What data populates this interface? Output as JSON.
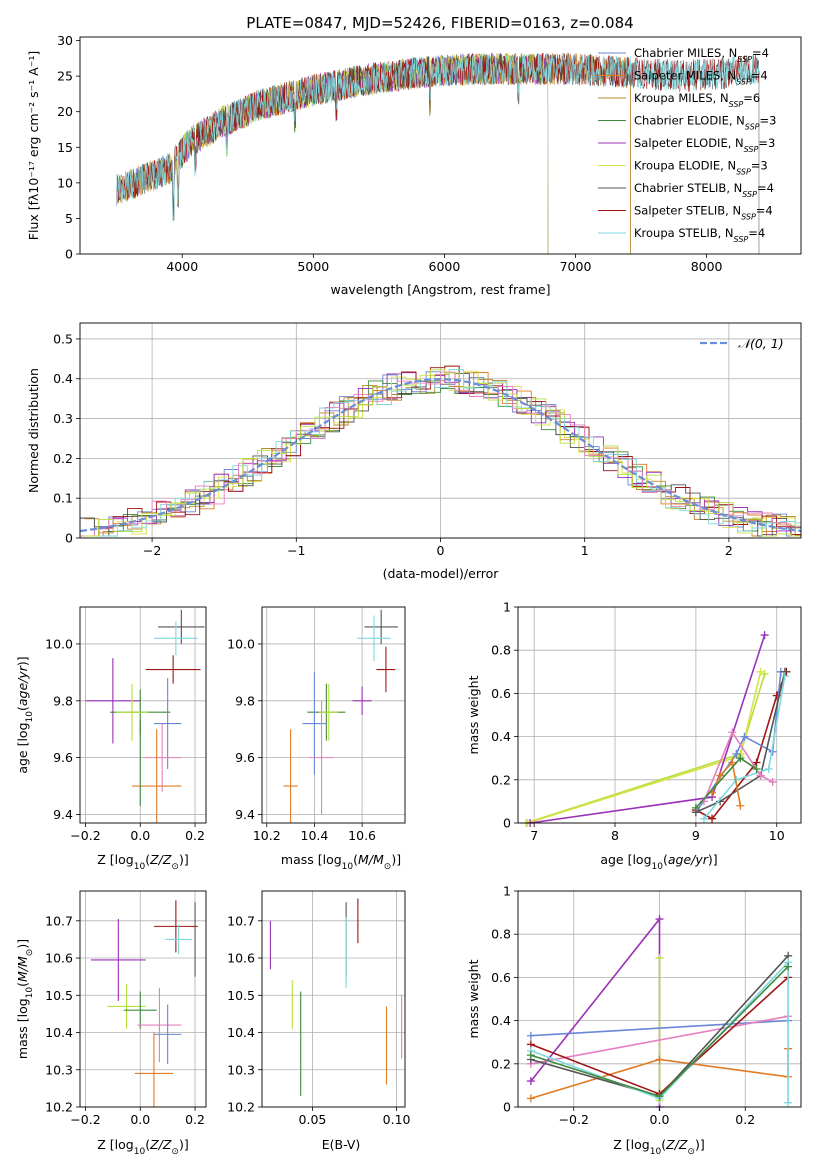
{
  "figure_title": "PLATE=0847, MJD=52426, FIBERID=0163, z=0.084",
  "colors": {
    "Chabrier MILES": "#6a86d6",
    "Salpeter MILES": "#e07b26",
    "Kroupa MILES": "#b8892a",
    "Chabrier ELODIE": "#3e8a3e",
    "Salpeter ELODIE": "#9b30b8",
    "Kroupa ELODIE": "#d9e04a",
    "Chabrier STELIB": "#555555",
    "Salpeter STELIB": "#a01515",
    "Kroupa STELIB": "#7ed8de",
    "pink": "#e67fbf",
    "lime": "#b6e03c",
    "gauss": "#6a8fd8"
  },
  "chart_data": [
    {
      "id": "spectrum",
      "type": "line",
      "title": "PLATE=0847, MJD=52426, FIBERID=0163, z=0.084",
      "xlabel": "wavelength [Angstrom, rest frame]",
      "ylabel": "Flux [fλ10⁻¹⁷ erg cm⁻² s⁻¹ A⁻¹]",
      "xlim": [
        3220,
        8720
      ],
      "ylim": [
        0,
        30.5
      ],
      "xticks": [
        4000,
        5000,
        6000,
        7000,
        8000
      ],
      "yticks": [
        0,
        5,
        10,
        15,
        20,
        25,
        30
      ],
      "legend_placement": "upper-right",
      "continuum_x": [
        3500,
        3700,
        3900,
        4050,
        4300,
        4600,
        5000,
        5400,
        5800,
        6200,
        6600,
        7000,
        7400,
        7800,
        8200,
        8400
      ],
      "continuum_y": [
        9,
        10.5,
        12,
        15.5,
        18.5,
        21,
        23,
        24.5,
        25.5,
        26,
        26,
        26,
        25.5,
        25,
        25.5,
        26
      ],
      "series": [
        {
          "name": "Chabrier MILES, N_SSP=4",
          "sub": "SSP",
          "pre": "Chabrier MILES, N",
          "post": "=4",
          "color_key": "Chabrier MILES",
          "range": [
            3500,
            7420
          ]
        },
        {
          "name": "Salpeter MILES, N_SSP=4",
          "sub": "SSP",
          "pre": "Salpeter MILES, N",
          "post": "=4",
          "color_key": "Salpeter MILES",
          "range": [
            3500,
            7420
          ]
        },
        {
          "name": "Kroupa MILES, N_SSP=6",
          "sub": "SSP",
          "pre": "Kroupa MILES, N",
          "post": "=6",
          "color_key": "Kroupa MILES",
          "range": [
            3500,
            7420
          ]
        },
        {
          "name": "Chabrier ELODIE, N_SSP=3",
          "sub": "SSP",
          "pre": "Chabrier ELODIE, N",
          "post": "=3",
          "color_key": "Chabrier ELODIE",
          "range": [
            3900,
            6790
          ]
        },
        {
          "name": "Salpeter ELODIE, N_SSP=3",
          "sub": "SSP",
          "pre": "Salpeter ELODIE, N",
          "post": "=3",
          "color_key": "Salpeter ELODIE",
          "range": [
            3900,
            6790
          ]
        },
        {
          "name": "Kroupa ELODIE, N_SSP=3",
          "sub": "SSP",
          "pre": "Kroupa ELODIE, N",
          "post": "=3",
          "color_key": "Kroupa ELODIE",
          "range": [
            3900,
            6790
          ]
        },
        {
          "name": "Chabrier STELIB, N_SSP=4",
          "sub": "SSP",
          "pre": "Chabrier STELIB, N",
          "post": "=4",
          "color_key": "Chabrier STELIB",
          "range": [
            3500,
            8400
          ]
        },
        {
          "name": "Salpeter STELIB, N_SSP=4",
          "sub": "SSP",
          "pre": "Salpeter STELIB, N",
          "post": "=4",
          "color_key": "Salpeter STELIB",
          "range": [
            3500,
            8400
          ]
        },
        {
          "name": "Kroupa STELIB, N_SSP=4",
          "sub": "SSP",
          "pre": "Kroupa STELIB, N",
          "post": "=4",
          "color_key": "Kroupa STELIB",
          "range": [
            3500,
            8400
          ]
        }
      ]
    },
    {
      "id": "residuals",
      "type": "line",
      "xlabel": "(data-model)/error",
      "ylabel": "Normed distribution",
      "xlim": [
        -2.5,
        2.5
      ],
      "ylim": [
        0,
        0.54
      ],
      "xticks": [
        -2,
        -1,
        0,
        1,
        2
      ],
      "xticklabels": [
        "−2",
        "−1",
        "0",
        "1",
        "2"
      ],
      "yticks": [
        0.0,
        0.1,
        0.2,
        0.3,
        0.4,
        0.5
      ],
      "grid": true,
      "legend_placement": "upper-right",
      "gauss_label": "𝒩(0, 1)",
      "bin_width": 0.1,
      "histogram_colors": [
        "Chabrier MILES",
        "Salpeter MILES",
        "Kroupa MILES",
        "Chabrier ELODIE",
        "Salpeter ELODIE",
        "Kroupa ELODIE",
        "Chabrier STELIB",
        "Salpeter STELIB",
        "Kroupa STELIB",
        "pink",
        "lime"
      ]
    },
    {
      "id": "age_vs_Z",
      "type": "scatter",
      "xlabel": "Z [log10(Z/Z⊙)]",
      "ylabel": "age [log10(age/yr)]",
      "xlim": [
        -0.22,
        0.24
      ],
      "ylim": [
        9.37,
        10.13
      ],
      "xticks": [
        -0.2,
        0.0,
        0.2
      ],
      "xticklabels": [
        "−0.2",
        "0.0",
        "0.2"
      ],
      "yticks": [
        9.4,
        9.6,
        9.8,
        10.0
      ],
      "yticklabels": [
        "9.4",
        "9.6",
        "9.8",
        "10.0"
      ],
      "grid": true,
      "points": [
        {
          "c": "Chabrier STELIB",
          "x": 0.15,
          "xerr": 0.085,
          "y": 10.06,
          "yerr": 0.06
        },
        {
          "c": "Kroupa STELIB",
          "x": 0.13,
          "xerr": 0.08,
          "y": 10.02,
          "yerr": 0.06
        },
        {
          "c": "Salpeter STELIB",
          "x": 0.12,
          "xerr": 0.1,
          "y": 9.91,
          "yerr": 0.05
        },
        {
          "c": "Salpeter ELODIE",
          "x": -0.1,
          "xerr": 0.1,
          "y": 9.8,
          "yerr": 0.15
        },
        {
          "c": "Chabrier ELODIE",
          "x": 0.0,
          "xerr": 0.11,
          "y": 9.76,
          "yerr": 0.08
        },
        {
          "c": "lime",
          "x": -0.03,
          "xerr": 0.06,
          "y": 9.76,
          "yerr": 0.1
        },
        {
          "c": "Chabrier MILES",
          "x": 0.1,
          "xerr": 0.05,
          "y": 9.72,
          "yerr": 0.16
        },
        {
          "c": "pink",
          "x": 0.08,
          "xerr": 0.07,
          "y": 9.6,
          "yerr": 0.12
        },
        {
          "c": "Salpeter MILES",
          "x": 0.06,
          "xerr": 0.09,
          "y": 9.5,
          "yerr": 0.2
        },
        {
          "c": "Chabrier ELODIE",
          "x": 0.0,
          "xerr": 0.0,
          "y": 9.58,
          "yerr": 0.15
        }
      ]
    },
    {
      "id": "age_vs_mass",
      "type": "scatter",
      "xlabel": "mass [log10(M/M⊙)]",
      "xlim": [
        10.18,
        10.78
      ],
      "ylim": [
        9.37,
        10.13
      ],
      "xticks": [
        10.2,
        10.4,
        10.6
      ],
      "xticklabels": [
        "10.2",
        "10.4",
        "10.6"
      ],
      "yticks": [
        9.4,
        9.6,
        9.8,
        10.0
      ],
      "yticklabels": [
        "9.4",
        "9.6",
        "9.8",
        "10.0"
      ],
      "grid": true,
      "points": [
        {
          "c": "Chabrier STELIB",
          "x": 10.68,
          "xerr": 0.07,
          "y": 10.06,
          "yerr": 0.06
        },
        {
          "c": "Kroupa STELIB",
          "x": 10.65,
          "xerr": 0.07,
          "y": 10.02,
          "yerr": 0.08
        },
        {
          "c": "Salpeter STELIB",
          "x": 10.7,
          "xerr": 0.04,
          "y": 9.91,
          "yerr": 0.08
        },
        {
          "c": "Salpeter ELODIE",
          "x": 10.6,
          "xerr": 0.04,
          "y": 9.8,
          "yerr": 0.05
        },
        {
          "c": "Chabrier ELODIE",
          "x": 10.45,
          "xerr": 0.08,
          "y": 9.76,
          "yerr": 0.1
        },
        {
          "c": "lime",
          "x": 10.46,
          "xerr": 0.04,
          "y": 9.76,
          "yerr": 0.1
        },
        {
          "c": "Chabrier MILES",
          "x": 10.4,
          "xerr": 0.05,
          "y": 9.72,
          "yerr": 0.18
        },
        {
          "c": "pink",
          "x": 10.43,
          "xerr": 0.05,
          "y": 9.6,
          "yerr": 0.2
        },
        {
          "c": "Salpeter MILES",
          "x": 10.3,
          "xerr": 0.03,
          "y": 9.5,
          "yerr": 0.2
        }
      ]
    },
    {
      "id": "weight_vs_age",
      "type": "line",
      "xlabel": "age [log10(age/yr)]",
      "ylabel": "mass weight",
      "xlim": [
        6.8,
        10.3
      ],
      "ylim": [
        0.0,
        1.0
      ],
      "xticks": [
        7,
        8,
        9,
        10
      ],
      "yticks": [
        0.0,
        0.2,
        0.4,
        0.6,
        0.8,
        1.0
      ],
      "grid": true,
      "series": [
        {
          "c": "lime",
          "x": [
            6.9,
            9.55,
            9.85
          ],
          "y": [
            0.0,
            0.32,
            0.69
          ]
        },
        {
          "c": "Kroupa ELODIE",
          "x": [
            6.92,
            9.55,
            9.8
          ],
          "y": [
            0.0,
            0.31,
            0.7
          ]
        },
        {
          "c": "Salpeter ELODIE",
          "x": [
            6.95,
            9.2,
            9.85
          ],
          "y": [
            0.0,
            0.12,
            0.87
          ]
        },
        {
          "c": "Salpeter STELIB",
          "x": [
            9.0,
            9.2,
            9.75,
            10.0,
            10.12
          ],
          "y": [
            0.06,
            0.02,
            0.28,
            0.59,
            0.7
          ]
        },
        {
          "c": "Chabrier MILES",
          "x": [
            9.0,
            9.5,
            9.6,
            9.95,
            10.05
          ],
          "y": [
            0.05,
            0.32,
            0.4,
            0.33,
            0.7
          ]
        },
        {
          "c": "Chabrier STELIB",
          "x": [
            9.0,
            9.3,
            9.8,
            10.1
          ],
          "y": [
            0.05,
            0.1,
            0.22,
            0.7
          ]
        },
        {
          "c": "Kroupa STELIB",
          "x": [
            9.1,
            9.5,
            9.9,
            10.1
          ],
          "y": [
            0.02,
            0.2,
            0.25,
            0.68
          ]
        },
        {
          "c": "pink",
          "x": [
            9.1,
            9.45,
            9.8,
            9.95
          ],
          "y": [
            0.1,
            0.42,
            0.22,
            0.19
          ]
        },
        {
          "c": "Salpeter MILES",
          "x": [
            9.2,
            9.3,
            9.45,
            9.55
          ],
          "y": [
            0.14,
            0.22,
            0.28,
            0.08
          ]
        },
        {
          "c": "Chabrier ELODIE",
          "x": [
            9.0,
            9.55,
            9.75
          ],
          "y": [
            0.07,
            0.3,
            0.25
          ]
        }
      ]
    },
    {
      "id": "mass_vs_Z",
      "type": "scatter",
      "xlabel": "Z [log10(Z/Z⊙)]",
      "ylabel": "mass [log10(M/M⊙)]",
      "xlim": [
        -0.22,
        0.24
      ],
      "ylim": [
        10.2,
        10.78
      ],
      "xticks": [
        -0.2,
        0.0,
        0.2
      ],
      "xticklabels": [
        "−0.2",
        "0.0",
        "0.2"
      ],
      "yticks": [
        10.2,
        10.3,
        10.4,
        10.5,
        10.6,
        10.7
      ],
      "yticklabels": [
        "10.2",
        "10.3",
        "10.4",
        "10.5",
        "10.6",
        "10.7"
      ],
      "grid": true,
      "points": [
        {
          "c": "Chabrier STELIB",
          "x": 0.2,
          "xerr": 0.0,
          "y": 10.65,
          "yerr": 0.1
        },
        {
          "c": "Salpeter STELIB",
          "x": 0.13,
          "xerr": 0.08,
          "y": 10.685,
          "yerr": 0.07
        },
        {
          "c": "Kroupa STELIB",
          "x": 0.14,
          "xerr": 0.05,
          "y": 10.65,
          "yerr": 0.04
        },
        {
          "c": "Salpeter ELODIE",
          "x": -0.08,
          "xerr": 0.1,
          "y": 10.595,
          "yerr": 0.11
        },
        {
          "c": "lime",
          "x": -0.05,
          "xerr": 0.07,
          "y": 10.47,
          "yerr": 0.06
        },
        {
          "c": "Chabrier ELODIE",
          "x": 0.0,
          "xerr": 0.06,
          "y": 10.46,
          "yerr": 0.05
        },
        {
          "c": "pink",
          "x": 0.07,
          "xerr": 0.08,
          "y": 10.42,
          "yerr": 0.1
        },
        {
          "c": "Chabrier MILES",
          "x": 0.1,
          "xerr": 0.05,
          "y": 10.395,
          "yerr": 0.08
        },
        {
          "c": "Salpeter MILES",
          "x": 0.05,
          "xerr": 0.07,
          "y": 10.29,
          "yerr": 0.11
        }
      ]
    },
    {
      "id": "mass_vs_ebv",
      "type": "scatter",
      "xlabel": "E(B-V)",
      "xlim": [
        0.02,
        0.105
      ],
      "ylim": [
        10.2,
        10.78
      ],
      "xticks": [
        0.05,
        0.1
      ],
      "xticklabels": [
        "0.05",
        "0.10"
      ],
      "yticks": [
        10.2,
        10.3,
        10.4,
        10.5,
        10.6,
        10.7
      ],
      "yticklabels": [
        "10.2",
        "10.3",
        "10.4",
        "10.5",
        "10.6",
        "10.7"
      ],
      "grid": true,
      "segments": [
        {
          "c": "Salpeter ELODIE",
          "x": 0.025,
          "y1": 10.57,
          "y2": 10.7
        },
        {
          "c": "lime",
          "x": 0.038,
          "y1": 10.41,
          "y2": 10.54
        },
        {
          "c": "Chabrier ELODIE",
          "x": 0.043,
          "y1": 10.23,
          "y2": 10.51
        },
        {
          "c": "Chabrier STELIB",
          "x": 0.07,
          "y1": 10.55,
          "y2": 10.75
        },
        {
          "c": "Kroupa STELIB",
          "x": 0.07,
          "y1": 10.52,
          "y2": 10.71
        },
        {
          "c": "Salpeter STELIB",
          "x": 0.077,
          "y1": 10.64,
          "y2": 10.76
        },
        {
          "c": "Salpeter MILES",
          "x": 0.094,
          "y1": 10.26,
          "y2": 10.47
        },
        {
          "c": "pink",
          "x": 0.103,
          "y1": 10.33,
          "y2": 10.5
        }
      ]
    },
    {
      "id": "weight_vs_Z",
      "type": "line",
      "xlabel": "Z [log10(Z/Z⊙)]",
      "ylabel": "mass weight",
      "xlim": [
        -0.33,
        0.33
      ],
      "ylim": [
        0.0,
        1.0
      ],
      "xticks": [
        -0.2,
        0.0,
        0.2
      ],
      "xticklabels": [
        "−0.2",
        "0.0",
        "0.2"
      ],
      "yticks": [
        0.0,
        0.2,
        0.4,
        0.6,
        0.8,
        1.0
      ],
      "grid": true,
      "series": [
        {
          "c": "Salpeter ELODIE",
          "x": [
            -0.3,
            0.0,
            0.0
          ],
          "y": [
            0.12,
            0.87,
            0.0
          ]
        },
        {
          "c": "lime",
          "x": [
            0.0,
            0.0
          ],
          "y": [
            0.69,
            0.03
          ]
        },
        {
          "c": "Chabrier MILES",
          "x": [
            -0.3,
            0.3
          ],
          "y": [
            0.33,
            0.4
          ]
        },
        {
          "c": "Salpeter MILES",
          "x": [
            -0.3,
            0.0,
            0.3,
            0.3
          ],
          "y": [
            0.04,
            0.22,
            0.14,
            0.27
          ]
        },
        {
          "c": "pink",
          "x": [
            -0.3,
            0.3
          ],
          "y": [
            0.2,
            0.42
          ]
        },
        {
          "c": "Chabrier STELIB",
          "x": [
            -0.3,
            0.0,
            0.3
          ],
          "y": [
            0.22,
            0.05,
            0.7
          ]
        },
        {
          "c": "Salpeter STELIB",
          "x": [
            -0.3,
            0.0,
            0.3
          ],
          "y": [
            0.29,
            0.06,
            0.6
          ]
        },
        {
          "c": "Kroupa STELIB",
          "x": [
            -0.3,
            0.0,
            0.3,
            0.3
          ],
          "y": [
            0.26,
            0.04,
            0.67,
            0.02
          ]
        },
        {
          "c": "Chabrier ELODIE",
          "x": [
            -0.3,
            0.0,
            0.3
          ],
          "y": [
            0.24,
            0.05,
            0.65
          ]
        }
      ]
    }
  ]
}
